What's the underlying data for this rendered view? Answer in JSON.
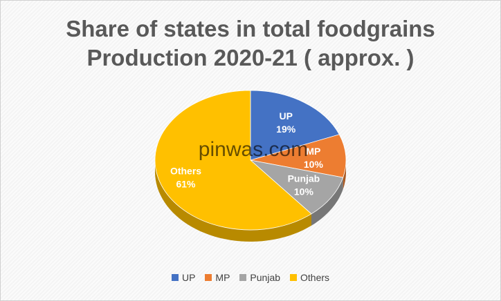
{
  "watermark": "pinwas.com",
  "chart_data": {
    "type": "pie",
    "title": "Share of states in total foodgrains Production 2020-21 ( approx. )",
    "title_lines": [
      "Share of states in total foodgrains",
      "Production 2020-21 ( approx. )"
    ],
    "categories": [
      "UP",
      "MP",
      "Punjab",
      "Others"
    ],
    "values": [
      19,
      10,
      10,
      61
    ],
    "value_labels": [
      "19%",
      "10%",
      "10%",
      "61%"
    ],
    "colors": [
      "#4472c4",
      "#ed7d31",
      "#a5a5a5",
      "#ffc000"
    ],
    "legend_position": "bottom",
    "style": "3d-pie"
  }
}
